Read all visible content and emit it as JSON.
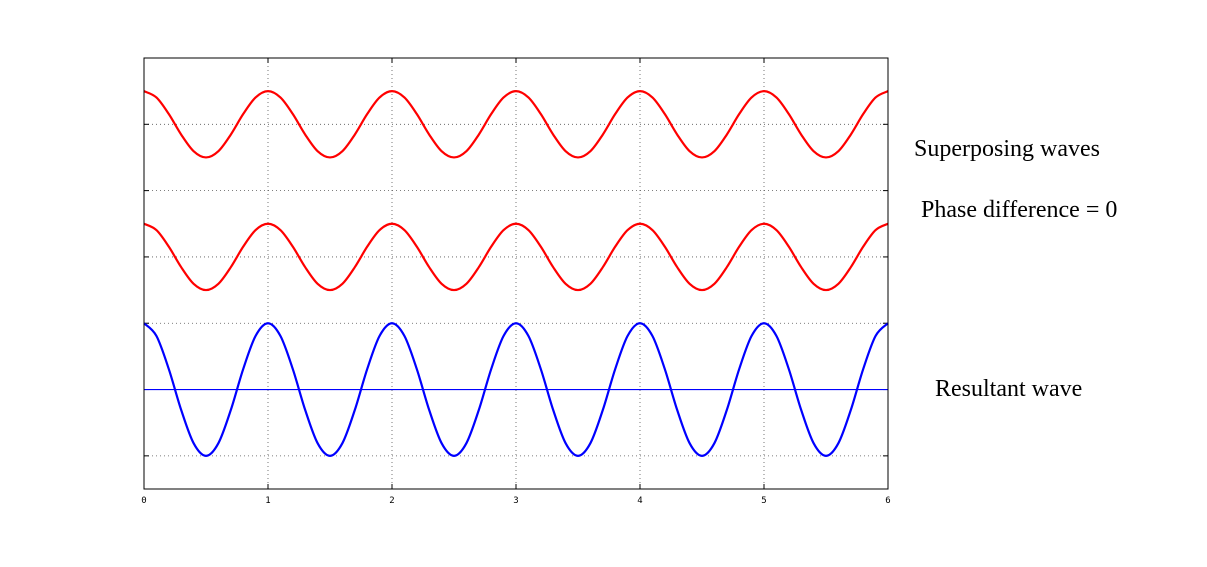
{
  "chart_data": {
    "type": "line",
    "annotations": [
      "Superposing waves",
      "Phase difference = 0",
      "Resultant wave"
    ],
    "x": [
      0,
      0.1,
      0.2,
      0.3,
      0.4,
      0.5,
      0.6,
      0.7,
      0.8,
      0.9,
      1,
      1.1,
      1.2,
      1.3,
      1.4,
      1.5,
      1.6,
      1.7,
      1.8,
      1.9,
      2,
      2.1,
      2.2,
      2.3,
      2.4,
      2.5,
      2.6,
      2.7,
      2.8,
      2.9,
      3,
      3.1,
      3.2,
      3.3,
      3.4,
      3.5,
      3.6,
      3.7,
      3.8,
      3.9,
      4,
      4.1,
      4.2,
      4.3,
      4.4,
      4.5,
      4.6,
      4.7,
      4.8,
      4.9,
      5,
      5.1,
      5.2,
      5.3,
      5.4,
      5.5,
      5.6,
      5.7,
      5.8,
      5.9,
      6
    ],
    "series": [
      {
        "color": "#ff0000",
        "values": [
          4.5,
          4.405,
          4.155,
          3.845,
          3.595,
          3.5,
          3.595,
          3.845,
          4.155,
          4.405,
          4.5,
          4.405,
          4.155,
          3.845,
          3.595,
          3.5,
          3.595,
          3.845,
          4.155,
          4.405,
          4.5,
          4.405,
          4.155,
          3.845,
          3.595,
          3.5,
          3.595,
          3.845,
          4.155,
          4.405,
          4.5,
          4.405,
          4.155,
          3.845,
          3.595,
          3.5,
          3.595,
          3.845,
          4.155,
          4.405,
          4.5,
          4.405,
          4.155,
          3.845,
          3.595,
          3.5,
          3.595,
          3.845,
          4.155,
          4.405,
          4.5,
          4.405,
          4.155,
          3.845,
          3.595,
          3.5,
          3.595,
          3.845,
          4.155,
          4.405,
          4.5
        ]
      },
      {
        "color": "#ff0000",
        "values": [
          2.5,
          2.405,
          2.155,
          1.845,
          1.595,
          1.5,
          1.595,
          1.845,
          2.155,
          2.405,
          2.5,
          2.405,
          2.155,
          1.845,
          1.595,
          1.5,
          1.595,
          1.845,
          2.155,
          2.405,
          2.5,
          2.405,
          2.155,
          1.845,
          1.595,
          1.5,
          1.595,
          1.845,
          2.155,
          2.405,
          2.5,
          2.405,
          2.155,
          1.845,
          1.595,
          1.5,
          1.595,
          1.845,
          2.155,
          2.405,
          2.5,
          2.405,
          2.155,
          1.845,
          1.595,
          1.5,
          1.595,
          1.845,
          2.155,
          2.405,
          2.5,
          2.405,
          2.155,
          1.845,
          1.595,
          1.5,
          1.595,
          1.845,
          2.155,
          2.405,
          2.5
        ]
      },
      {
        "color": "#0000ff",
        "values": [
          1,
          0.809,
          0.309,
          -0.309,
          -0.809,
          -1,
          -0.809,
          -0.309,
          0.309,
          0.809,
          1,
          0.809,
          0.309,
          -0.309,
          -0.809,
          -1,
          -0.809,
          -0.309,
          0.309,
          0.809,
          1,
          0.809,
          0.309,
          -0.309,
          -0.809,
          -1,
          -0.809,
          -0.309,
          0.309,
          0.809,
          1,
          0.809,
          0.309,
          -0.309,
          -0.809,
          -1,
          -0.809,
          -0.309,
          0.309,
          0.809,
          1,
          0.809,
          0.309,
          -0.309,
          -0.809,
          -1,
          -0.809,
          -0.309,
          0.309,
          0.809,
          1,
          0.809,
          0.309,
          -0.309,
          -0.809,
          -1,
          -0.809,
          -0.309,
          0.309,
          0.809,
          1
        ]
      }
    ],
    "hlines": [
      {
        "value": 0,
        "color": "#0000ff"
      }
    ],
    "xlim": [
      0,
      6
    ],
    "xticks": [
      0,
      1,
      2,
      3,
      4,
      5,
      6
    ],
    "ylim": [
      -1.5,
      5
    ],
    "yticks": [
      -1,
      0,
      1,
      2,
      3,
      4
    ],
    "grid": true
  }
}
